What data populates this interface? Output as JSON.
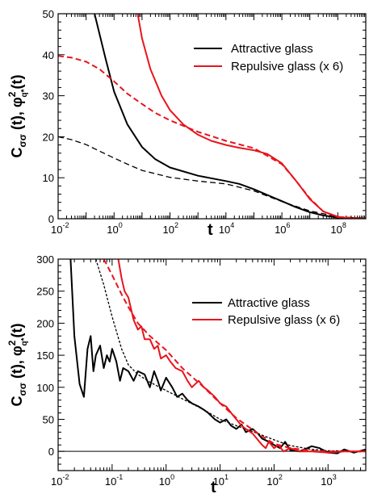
{
  "colors": {
    "attractive": "#000000",
    "repulsive": "#e8141c",
    "zero_line": "#000000"
  },
  "chart_data": [
    {
      "type": "line",
      "panel": "top",
      "xlabel": "t",
      "ylabel_main": "C",
      "ylabel_sub": "σσ",
      "ylabel_rest": " (t), φ",
      "ylabel_sup": "2",
      "ylabel_sub2": "q*",
      "ylabel_end": "(t)",
      "x_scale": "log",
      "xlim": [
        0.01,
        1000000000
      ],
      "ylim": [
        0,
        50
      ],
      "x_ticks": [
        {
          "value": 0.01,
          "base": "10",
          "exp": "-2"
        },
        {
          "value": 1,
          "base": "10",
          "exp": "0"
        },
        {
          "value": 100,
          "base": "10",
          "exp": "2"
        },
        {
          "value": 10000,
          "base": "10",
          "exp": "4"
        },
        {
          "value": 1000000,
          "base": "10",
          "exp": "6"
        },
        {
          "value": 100000000,
          "base": "10",
          "exp": "8"
        }
      ],
      "y_ticks": [
        0,
        10,
        20,
        30,
        40,
        50
      ],
      "legend": {
        "placement": "top-right",
        "entries": [
          {
            "label": "Attractive glass",
            "color": "#000000"
          },
          {
            "label": "Repulsive glass (x 6)",
            "color": "#e8141c"
          }
        ]
      },
      "series": [
        {
          "name": "Attractive glass",
          "style": "solid",
          "color": "#000000",
          "x": [
            0.2,
            0.5,
            1,
            3,
            10,
            30,
            100,
            1000,
            10000,
            30000,
            100000,
            300000,
            1000000,
            3000000,
            10000000,
            30000000,
            100000000,
            1000000000
          ],
          "y": [
            50,
            39,
            31,
            23,
            17.5,
            14.5,
            12.5,
            10.5,
            9.2,
            8.5,
            7.2,
            5.8,
            4.3,
            2.9,
            1.6,
            0.8,
            0.3,
            0.1
          ]
        },
        {
          "name": "Attractive glass (theory)",
          "style": "dashed",
          "color": "#000000",
          "x": [
            0.01,
            0.03,
            0.1,
            0.3,
            1,
            3,
            10,
            100,
            1000,
            10000,
            100000,
            1000000,
            10000000,
            100000000,
            1000000000
          ],
          "y": [
            20,
            19.3,
            18.1,
            16.5,
            14.8,
            13.3,
            11.8,
            10.1,
            9.2,
            8.5,
            6.8,
            4.2,
            1.9,
            0.5,
            0.1
          ]
        },
        {
          "name": "Repulsive glass (x 6)",
          "style": "solid",
          "color": "#e8141c",
          "x": [
            7,
            10,
            20,
            50,
            100,
            300,
            1000,
            3000,
            10000,
            30000,
            100000,
            300000,
            1000000,
            3000000,
            10000000,
            30000000,
            100000000,
            300000000,
            1000000000
          ],
          "y": [
            50,
            44,
            36.5,
            30,
            26.5,
            23,
            20.5,
            19,
            18,
            17.3,
            16.7,
            15.8,
            13.5,
            9.5,
            4.8,
            1.8,
            0.5,
            0.1,
            0
          ]
        },
        {
          "name": "Repulsive glass (theory)",
          "style": "dashed",
          "color": "#e8141c",
          "x": [
            0.01,
            0.03,
            0.1,
            0.3,
            1,
            3,
            10,
            30,
            100,
            1000,
            10000,
            100000,
            1000000,
            3000000,
            10000000,
            30000000,
            100000000,
            1000000000
          ],
          "y": [
            39.7,
            39.3,
            38.3,
            36.5,
            33.5,
            30.5,
            28,
            25.8,
            24,
            21.2,
            19,
            17.2,
            13.3,
            9.5,
            5,
            1.8,
            0.4,
            0
          ]
        }
      ]
    },
    {
      "type": "line",
      "panel": "bottom",
      "xlabel": "t",
      "ylabel_main": "C",
      "ylabel_sub": "σσ",
      "ylabel_rest": " (t), φ",
      "ylabel_sup": "2",
      "ylabel_sub2": "q*",
      "ylabel_end": "(t)",
      "x_scale": "log",
      "xlim": [
        0.01,
        5000
      ],
      "ylim": [
        -30,
        300
      ],
      "x_ticks": [
        {
          "value": 0.01,
          "base": "10",
          "exp": "-2"
        },
        {
          "value": 0.1,
          "base": "10",
          "exp": "-1"
        },
        {
          "value": 1,
          "base": "10",
          "exp": "0"
        },
        {
          "value": 10,
          "base": "10",
          "exp": "1"
        },
        {
          "value": 100,
          "base": "10",
          "exp": "2"
        },
        {
          "value": 1000,
          "base": "10",
          "exp": "3"
        }
      ],
      "y_ticks": [
        0,
        50,
        100,
        150,
        200,
        250,
        300
      ],
      "zero_line": 0,
      "legend": {
        "placement": "top-right",
        "entries": [
          {
            "label": "Attractive glass",
            "color": "#000000"
          },
          {
            "label": "Repulsive glass (x 6)",
            "color": "#e8141c"
          }
        ]
      },
      "series": [
        {
          "name": "Attractive glass",
          "style": "solid",
          "color": "#000000",
          "x": [
            0.017,
            0.02,
            0.025,
            0.03,
            0.035,
            0.04,
            0.045,
            0.05,
            0.06,
            0.07,
            0.08,
            0.09,
            0.1,
            0.12,
            0.14,
            0.16,
            0.2,
            0.25,
            0.3,
            0.4,
            0.5,
            0.6,
            0.7,
            0.8,
            1,
            1.3,
            1.6,
            2,
            2.5,
            3,
            4,
            5,
            6,
            8,
            10,
            13,
            16,
            20,
            25,
            30,
            40,
            50,
            60,
            80,
            100,
            130,
            160,
            200,
            300,
            500,
            700,
            1000,
            1500,
            2000,
            3000,
            5000
          ],
          "y": [
            300,
            180,
            105,
            85,
            160,
            180,
            125,
            150,
            165,
            130,
            150,
            140,
            160,
            140,
            110,
            130,
            125,
            110,
            125,
            120,
            100,
            125,
            110,
            95,
            115,
            100,
            85,
            90,
            80,
            75,
            70,
            65,
            60,
            50,
            45,
            50,
            40,
            35,
            42,
            30,
            35,
            28,
            20,
            15,
            10,
            5,
            15,
            2,
            0,
            8,
            5,
            -2,
            -3,
            3,
            -2,
            3
          ]
        },
        {
          "name": "Attractive glass (theory)",
          "style": "dashed",
          "color": "#000000",
          "x": [
            0.05,
            0.07,
            0.1,
            0.15,
            0.2,
            0.3,
            0.5,
            1,
            2,
            5,
            10,
            20,
            50,
            100,
            200,
            500,
            1000,
            5000
          ],
          "y": [
            300,
            260,
            210,
            160,
            135,
            120,
            108,
            95,
            82,
            65,
            50,
            40,
            28,
            18,
            9,
            3,
            1,
            0
          ]
        },
        {
          "name": "Repulsive glass (x 6)",
          "style": "solid",
          "color": "#e8141c",
          "x": [
            0.13,
            0.15,
            0.17,
            0.2,
            0.25,
            0.3,
            0.35,
            0.4,
            0.5,
            0.6,
            0.7,
            0.8,
            1,
            1.2,
            1.5,
            2,
            2.5,
            3,
            4,
            5,
            6,
            8,
            10,
            13,
            16,
            20,
            25,
            30,
            40,
            50,
            60,
            70,
            80,
            100,
            120,
            150,
            200,
            300,
            500,
            1000,
            2000,
            5000
          ],
          "y": [
            300,
            270,
            250,
            240,
            205,
            190,
            195,
            175,
            175,
            160,
            165,
            145,
            150,
            140,
            130,
            125,
            110,
            100,
            110,
            100,
            95,
            85,
            75,
            70,
            60,
            50,
            40,
            35,
            28,
            18,
            10,
            5,
            15,
            5,
            10,
            0,
            5,
            0,
            0,
            -2,
            0,
            0
          ]
        },
        {
          "name": "Repulsive glass (theory)",
          "style": "dashed",
          "color": "#e8141c",
          "x": [
            0.07,
            0.1,
            0.15,
            0.2,
            0.3,
            0.5,
            1,
            2,
            5,
            10,
            20,
            50,
            100,
            200,
            500,
            1000,
            5000
          ],
          "y": [
            300,
            275,
            245,
            225,
            200,
            180,
            158,
            130,
            100,
            75,
            52,
            28,
            12,
            5,
            1,
            0,
            0
          ]
        }
      ]
    }
  ]
}
